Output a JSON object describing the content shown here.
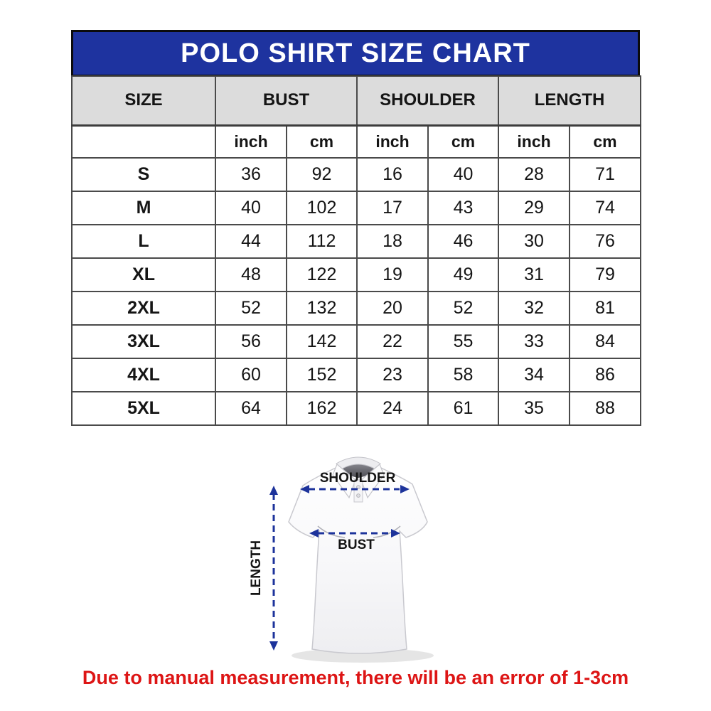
{
  "title": "POLO SHIRT SIZE CHART",
  "table": {
    "group_headers": [
      {
        "label": "SIZE"
      },
      {
        "label": "BUST"
      },
      {
        "label": "SHOULDER"
      },
      {
        "label": "LENGTH"
      }
    ],
    "unit_headers": [
      "inch",
      "cm",
      "inch",
      "cm",
      "inch",
      "cm"
    ],
    "rows": [
      {
        "size": "S",
        "values": [
          "36",
          "92",
          "16",
          "40",
          "28",
          "71"
        ]
      },
      {
        "size": "M",
        "values": [
          "40",
          "102",
          "17",
          "43",
          "29",
          "74"
        ]
      },
      {
        "size": "L",
        "values": [
          "44",
          "112",
          "18",
          "46",
          "30",
          "76"
        ]
      },
      {
        "size": "XL",
        "values": [
          "48",
          "122",
          "19",
          "49",
          "31",
          "79"
        ]
      },
      {
        "size": "2XL",
        "values": [
          "52",
          "132",
          "20",
          "52",
          "32",
          "81"
        ]
      },
      {
        "size": "3XL",
        "values": [
          "56",
          "142",
          "22",
          "55",
          "33",
          "84"
        ]
      },
      {
        "size": "4XL",
        "values": [
          "60",
          "152",
          "23",
          "58",
          "34",
          "86"
        ]
      },
      {
        "size": "5XL",
        "values": [
          "64",
          "162",
          "24",
          "61",
          "35",
          "88"
        ]
      }
    ]
  },
  "diagram": {
    "shoulder_label": "SHOULDER",
    "bust_label": "BUST",
    "length_label": "LENGTH"
  },
  "footnote": "Due to manual measurement, there will be an error of 1-3cm",
  "colors": {
    "banner_blue": "#1e339f",
    "banner_text": "#ffffff",
    "header_gray": "#dcdcdc",
    "table_border": "#4a4a4a",
    "arrow_blue": "#1d339b",
    "note_red": "#dd1515",
    "shirt_white": "#fafafb"
  }
}
